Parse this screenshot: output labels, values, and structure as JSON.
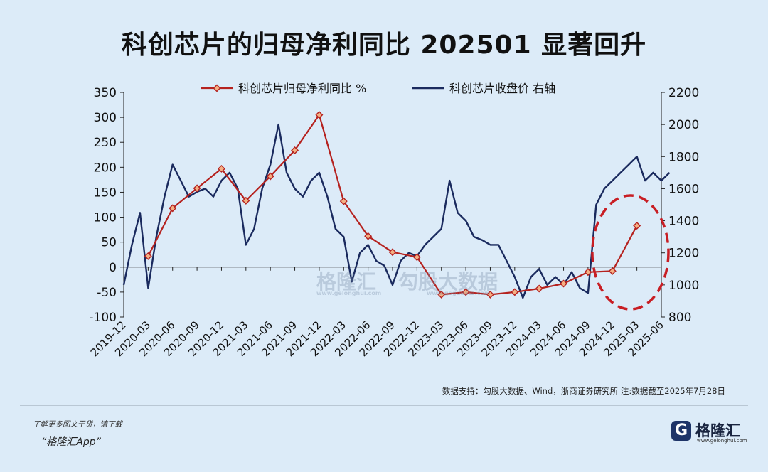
{
  "title": "科创芯片的归母净利同比 202501 显著回升",
  "source": "数据支持：勾股大数据、Wind，浙商证券研究所  注:数据截至2025年7月28日",
  "watermark": {
    "brand": "格隆汇",
    "brand_url": "www.gelonghui.com",
    "partner": "勾股大数据",
    "partner_url": "www.gogudata.com"
  },
  "footer": {
    "promo_line1": "了解更多图文干货，请下载",
    "promo_line2": "“格隆汇App”",
    "brand_name": "格隆汇",
    "brand_url": "www.gelonghui.com",
    "brand_logo_letter": "G"
  },
  "chart_data": {
    "type": "line",
    "legend": [
      "科创芯片归母净利同比 %",
      "科创芯片收盘价 右轴"
    ],
    "legend_position": "top-center",
    "x_tick_labels": [
      "2019-12",
      "2020-03",
      "2020-06",
      "2020-09",
      "2020-12",
      "2021-03",
      "2021-06",
      "2021-09",
      "2021-12",
      "2022-03",
      "2022-06",
      "2022-09",
      "2022-12",
      "2023-03",
      "2023-06",
      "2023-09",
      "2023-12",
      "2024-03",
      "2024-06",
      "2024-09",
      "2024-12",
      "2025-03",
      "2025-06"
    ],
    "left_axis": {
      "min": -100,
      "max": 350,
      "ticks": [
        -100,
        -50,
        0,
        50,
        100,
        150,
        200,
        250,
        300,
        350
      ]
    },
    "right_axis": {
      "min": 800,
      "max": 2200,
      "ticks": [
        800,
        1000,
        1200,
        1400,
        1600,
        1800,
        2000,
        2200
      ]
    },
    "series": [
      {
        "name": "科创芯片归母净利同比 %",
        "axis": "left",
        "color": "#b5221f",
        "marker": "diamond",
        "x": [
          "2020-03",
          "2020-06",
          "2020-09",
          "2020-12",
          "2021-03",
          "2021-06",
          "2021-09",
          "2021-12",
          "2022-03",
          "2022-06",
          "2022-09",
          "2022-12",
          "2023-03",
          "2023-06",
          "2023-09",
          "2023-12",
          "2024-03",
          "2024-06",
          "2024-09",
          "2024-12",
          "2025-03"
        ],
        "values": [
          22,
          118,
          158,
          197,
          133,
          182,
          234,
          305,
          132,
          62,
          30,
          20,
          -55,
          -50,
          -55,
          -50,
          -43,
          -33,
          -10,
          -8,
          83
        ]
      },
      {
        "name": "科创芯片收盘价 右轴",
        "axis": "right",
        "color": "#1a2a5e",
        "x": [
          "2019-12",
          "2020-01",
          "2020-02",
          "2020-03",
          "2020-04",
          "2020-05",
          "2020-06",
          "2020-07",
          "2020-08",
          "2020-09",
          "2020-10",
          "2020-11",
          "2020-12",
          "2021-01",
          "2021-02",
          "2021-03",
          "2021-04",
          "2021-05",
          "2021-06",
          "2021-07",
          "2021-08",
          "2021-09",
          "2021-10",
          "2021-11",
          "2021-12",
          "2022-01",
          "2022-02",
          "2022-03",
          "2022-04",
          "2022-05",
          "2022-06",
          "2022-07",
          "2022-08",
          "2022-09",
          "2022-10",
          "2022-11",
          "2022-12",
          "2023-01",
          "2023-02",
          "2023-03",
          "2023-04",
          "2023-05",
          "2023-06",
          "2023-07",
          "2023-08",
          "2023-09",
          "2023-10",
          "2023-11",
          "2023-12",
          "2024-01",
          "2024-02",
          "2024-03",
          "2024-04",
          "2024-05",
          "2024-06",
          "2024-07",
          "2024-08",
          "2024-09",
          "2024-10",
          "2024-11",
          "2024-12",
          "2025-01",
          "2025-02",
          "2025-03",
          "2025-04",
          "2025-05",
          "2025-06",
          "2025-07"
        ],
        "values": [
          1000,
          1250,
          1450,
          980,
          1300,
          1550,
          1750,
          1650,
          1550,
          1580,
          1600,
          1550,
          1650,
          1700,
          1600,
          1250,
          1350,
          1600,
          1750,
          2000,
          1700,
          1600,
          1550,
          1650,
          1700,
          1550,
          1350,
          1300,
          1020,
          1200,
          1250,
          1150,
          1120,
          1000,
          1150,
          1200,
          1180,
          1250,
          1300,
          1350,
          1650,
          1450,
          1400,
          1300,
          1280,
          1250,
          1250,
          1150,
          1050,
          920,
          1050,
          1100,
          1000,
          1050,
          1000,
          1080,
          980,
          950,
          1500,
          1600,
          1650,
          1700,
          1750,
          1800,
          1650,
          1700,
          1650,
          1700
        ]
      }
    ],
    "annotation": {
      "type": "dashed-ellipse",
      "color": "#c81e24",
      "x_range": [
        "2024-09",
        "2025-06"
      ]
    }
  }
}
